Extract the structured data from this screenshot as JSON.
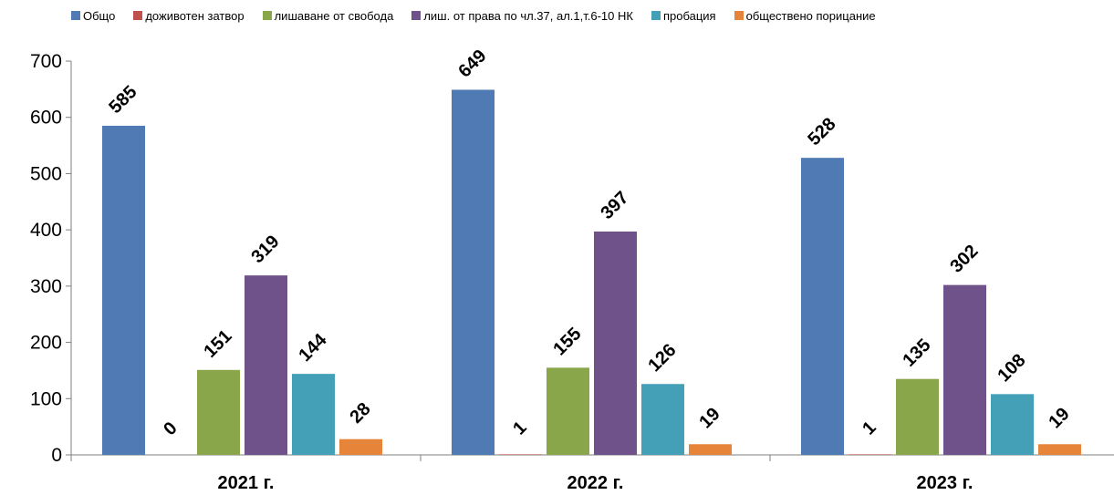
{
  "colors": {
    "Общо": "#4f7ab3",
    "доживотен затвор": "#c0504d",
    "лишаване от свобода": "#8aa64a",
    "лиш. от права по чл.37, ал.1,т.6-10 НК": "#70528a",
    "пробация": "#43a0b7",
    "обществено порицание": "#e6843a"
  },
  "chart_data": {
    "type": "bar",
    "categories": [
      "2021 г.",
      "2022 г.",
      "2023 г."
    ],
    "series": [
      {
        "name": "Общо",
        "values": [
          585,
          649,
          528
        ]
      },
      {
        "name": "доживотен затвор",
        "values": [
          0,
          1,
          1
        ]
      },
      {
        "name": "лишаване от свобода",
        "values": [
          151,
          155,
          135
        ]
      },
      {
        "name": "лиш. от права по чл.37, ал.1,т.6-10 НК",
        "values": [
          319,
          397,
          302
        ]
      },
      {
        "name": "пробация",
        "values": [
          144,
          126,
          108
        ]
      },
      {
        "name": "обществено порицание",
        "values": [
          28,
          19,
          19
        ]
      }
    ],
    "ylim": [
      0,
      700
    ],
    "yticks": [
      0,
      100,
      200,
      300,
      400,
      500,
      600,
      700
    ],
    "legend": "top",
    "grid": false,
    "data_labels": true
  }
}
